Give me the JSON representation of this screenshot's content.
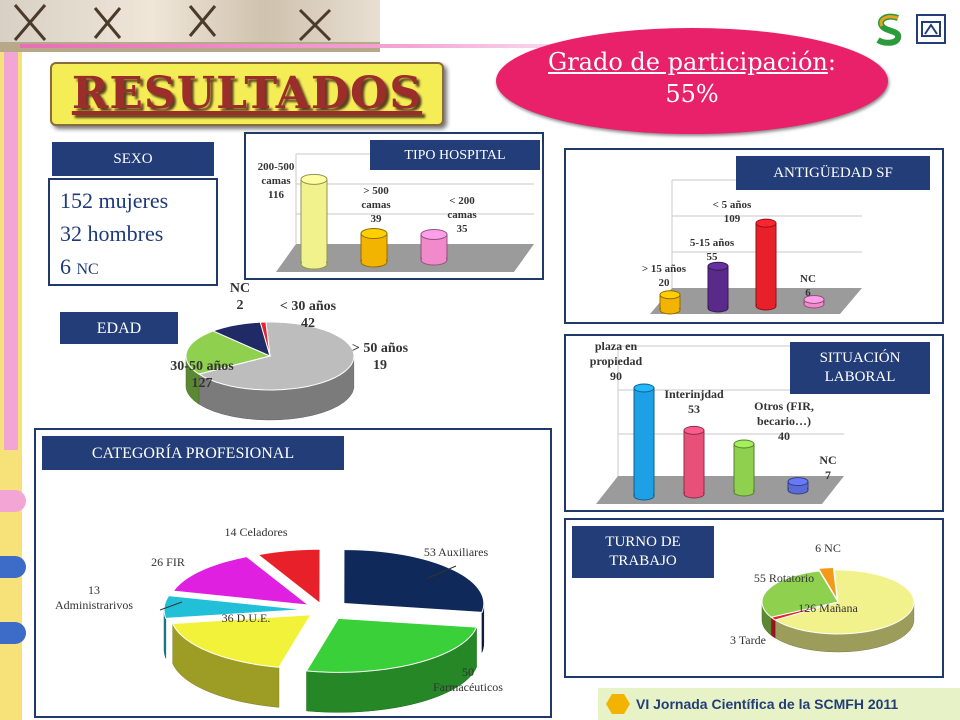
{
  "header": {
    "title": "RESULTADOS",
    "grade_label": "Grado de participación",
    "grade_colon": ":",
    "grade_value": "55%"
  },
  "footer": {
    "text": "VI Jornada Científica de la SCMFH 2011"
  },
  "colors": {
    "title_bg": "#f4ed55",
    "title_text": "#9b2d2a",
    "grade_bg": "#e8216a",
    "label_bg": "#233d78"
  },
  "sexo": {
    "label": "SEXO",
    "lines": [
      {
        "value": "152",
        "text": "mujeres"
      },
      {
        "value": "32",
        "text": "hombres"
      },
      {
        "value": "6",
        "text": "NC"
      }
    ]
  },
  "chart_data": [
    {
      "type": "bar",
      "title": "TIPO HOSPITAL",
      "categories": [
        "200-500 camas",
        "> 500 camas",
        "< 200 camas"
      ],
      "values": [
        116,
        39,
        35
      ],
      "colors": [
        "#f2f28c",
        "#f2b400",
        "#f08acb"
      ],
      "labels": [
        "200-500\ncamas\n116",
        "> 500\ncamas\n39",
        "< 200\ncamas\n35"
      ]
    },
    {
      "type": "bar",
      "title": "ANTIGÜEDAD SF",
      "categories": [
        "> 15 años",
        "5-15 años",
        "< 5 años",
        "NC"
      ],
      "values": [
        20,
        55,
        109,
        6
      ],
      "colors": [
        "#f2b400",
        "#5a2a8a",
        "#e8202a",
        "#f08acb"
      ],
      "labels": [
        "> 15 años\n20",
        "5-15 años\n55",
        "< 5 años\n109",
        "NC\n6"
      ]
    },
    {
      "type": "pie",
      "title": "EDAD",
      "categories": [
        "30-50 años",
        "< 30 años",
        "> 50 años",
        "NC"
      ],
      "values": [
        127,
        42,
        19,
        2
      ],
      "colors": [
        "#bdbdbd",
        "#8fd14f",
        "#1f2a66",
        "#e8202a"
      ],
      "labels": [
        "30-50 años\n127",
        "< 30 años\n42",
        "> 50 años\n19",
        "NC\n2"
      ]
    },
    {
      "type": "bar",
      "title": "SITUACIÓN LABORAL",
      "categories": [
        "plaza en propiedad",
        "Interinjdad",
        "Otros (FIR, becario…)",
        "NC"
      ],
      "values": [
        90,
        53,
        40,
        7
      ],
      "colors": [
        "#1ea0e6",
        "#e8507a",
        "#8fd14f",
        "#5a6ad8"
      ],
      "labels": [
        "plaza en\npropiedad\n90",
        "Interinjdad\n53",
        "Otros (FIR,\nbecario…)\n40",
        "NC\n7"
      ]
    },
    {
      "type": "pie",
      "title": "CATEGORÍA PROFESIONAL",
      "categories": [
        "Auxiliares",
        "Farmacéuticos",
        "D.U.E.",
        "Administrarivos",
        "FIR",
        "Celadores"
      ],
      "values": [
        53,
        50,
        36,
        13,
        26,
        14
      ],
      "colors": [
        "#0f2a5a",
        "#39d039",
        "#f2f23a",
        "#22c0d8",
        "#e020e0",
        "#e8202a"
      ],
      "labels": [
        "53 Auxiliares",
        "50\nFarmacéuticos",
        "36 D.U.E.",
        "13\nAdministrarivos",
        "26 FIR",
        "14 Celadores"
      ]
    },
    {
      "type": "pie",
      "title": "TURNO DE TRABAJO",
      "categories": [
        "Mañana",
        "Tarde",
        "Rotatorio",
        "NC"
      ],
      "values": [
        126,
        3,
        55,
        6
      ],
      "colors": [
        "#f2f28c",
        "#e8202a",
        "#8fd14f",
        "#f29a1a"
      ],
      "labels": [
        "126 Mañana",
        "3 Tarde",
        "55 Rotatorio",
        "6 NC"
      ]
    }
  ]
}
